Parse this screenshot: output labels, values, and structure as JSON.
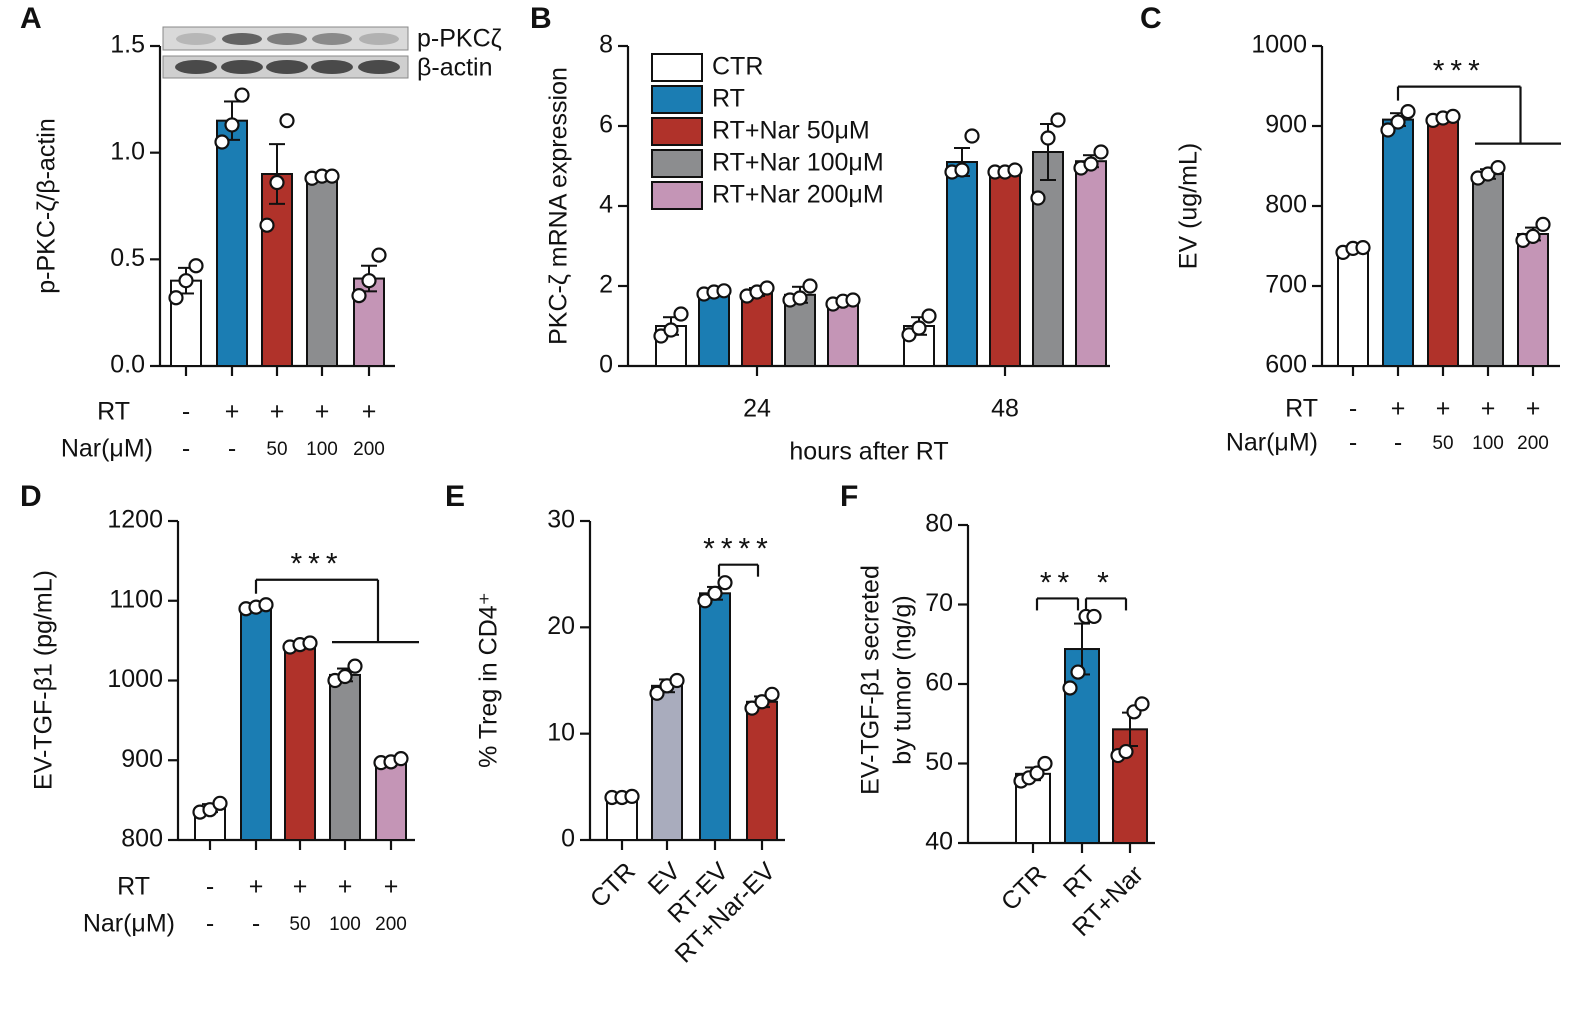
{
  "chart_data": [
    {
      "type": "bar",
      "panel": "A",
      "ylabel": "p-PKC-ζ/β-actin",
      "ylim": [
        0,
        1.5
      ],
      "yticks": [
        {
          "value": 0,
          "label": "0.0"
        },
        0.5,
        {
          "value": 1,
          "label": "1.0"
        },
        1.5
      ],
      "blot_labels": [
        "p-PKCζ",
        "β-actin"
      ],
      "values": [
        0.4,
        1.15,
        0.9,
        0.89,
        0.41
      ],
      "errors": [
        0.06,
        0.09,
        0.14,
        0.01,
        0.06
      ],
      "points": [
        [
          0.32,
          0.4,
          0.47
        ],
        [
          1.05,
          1.13,
          1.27
        ],
        [
          0.66,
          0.86,
          1.15
        ],
        [
          0.88,
          0.89,
          0.89
        ],
        [
          0.33,
          0.4,
          0.52
        ]
      ],
      "colors": [
        "#ffffff",
        "#1b7db3",
        "#b0322a",
        "#8c8d8f",
        "#c495b6"
      ],
      "rows": [
        {
          "name": "RT",
          "values": [
            "-",
            "+",
            "+",
            "+",
            "+"
          ]
        },
        {
          "name": "Nar(μM)",
          "values": [
            "-",
            "-",
            "50",
            "100",
            "200"
          ]
        }
      ]
    },
    {
      "type": "bar",
      "panel": "B",
      "ylabel": "PKC-ζ mRNA expression",
      "xlabel": "hours after RT",
      "ylim": [
        0,
        8
      ],
      "yticks": [
        0,
        2,
        4,
        6,
        8
      ],
      "categories": [
        "24",
        "48"
      ],
      "series": [
        {
          "name": "CTR",
          "color": "#ffffff",
          "values": [
            1.0,
            1.0
          ],
          "errors": [
            0.22,
            0.22
          ],
          "points": [
            [
              0.75,
              0.9,
              1.3
            ],
            [
              0.78,
              0.95,
              1.25
            ]
          ]
        },
        {
          "name": "RT",
          "color": "#1b7db3",
          "values": [
            1.85,
            5.1
          ],
          "errors": [
            0.05,
            0.35
          ],
          "points": [
            [
              1.8,
              1.85,
              1.88
            ],
            [
              4.85,
              4.9,
              5.75
            ]
          ]
        },
        {
          "name": "RT+Nar 50μM",
          "color": "#b0322a",
          "values": [
            1.85,
            4.88
          ],
          "errors": [
            0.1,
            0.07
          ],
          "points": [
            [
              1.75,
              1.85,
              1.95
            ],
            [
              4.85,
              4.85,
              4.9
            ]
          ]
        },
        {
          "name": "RT+Nar 100μM",
          "color": "#8c8d8f",
          "values": [
            1.78,
            5.35
          ],
          "errors": [
            0.2,
            0.7
          ],
          "points": [
            [
              1.65,
              1.7,
              2.0
            ],
            [
              4.2,
              5.7,
              6.15
            ]
          ]
        },
        {
          "name": "RT+Nar 200μM",
          "color": "#c495b6",
          "values": [
            1.62,
            5.12
          ],
          "errors": [
            0.07,
            0.15
          ],
          "points": [
            [
              1.55,
              1.62,
              1.65
            ],
            [
              4.95,
              5.05,
              5.35
            ]
          ]
        }
      ]
    },
    {
      "type": "bar",
      "panel": "C",
      "ylabel": "EV (ug/mL)",
      "ylim": [
        600,
        1000
      ],
      "yticks": [
        600,
        700,
        800,
        900,
        1000
      ],
      "values": [
        745,
        908,
        910,
        840,
        765
      ],
      "errors": [
        3,
        8,
        3,
        6,
        8
      ],
      "points": [
        [
          742,
          747,
          748
        ],
        [
          895,
          905,
          918
        ],
        [
          907,
          910,
          912
        ],
        [
          835,
          840,
          848
        ],
        [
          757,
          762,
          777
        ]
      ],
      "colors": [
        "#ffffff",
        "#1b7db3",
        "#b0322a",
        "#8c8d8f",
        "#c495b6"
      ],
      "rows": [
        {
          "name": "RT",
          "values": [
            "-",
            "+",
            "+",
            "+",
            "+"
          ]
        },
        {
          "name": "Nar(μM)",
          "values": [
            "-",
            "-",
            "50",
            "100",
            "200"
          ]
        }
      ],
      "significance": [
        {
          "label": "***",
          "from": 1,
          "to": [
            3,
            4
          ]
        }
      ]
    },
    {
      "type": "bar",
      "panel": "D",
      "ylabel": "EV-TGF-β1 (pg/mL)",
      "ylim": [
        800,
        1200
      ],
      "yticks": [
        800,
        900,
        1000,
        1100,
        1200
      ],
      "values": [
        840,
        1092,
        1045,
        1007,
        900
      ],
      "errors": [
        5,
        3,
        3,
        8,
        3
      ],
      "points": [
        [
          835,
          838,
          846
        ],
        [
          1090,
          1092,
          1095
        ],
        [
          1042,
          1045,
          1047
        ],
        [
          1000,
          1005,
          1018
        ],
        [
          897,
          898,
          902
        ]
      ],
      "colors": [
        "#ffffff",
        "#1b7db3",
        "#b0322a",
        "#8c8d8f",
        "#c495b6"
      ],
      "rows": [
        {
          "name": "RT",
          "values": [
            "-",
            "+",
            "+",
            "+",
            "+"
          ]
        },
        {
          "name": "Nar(μM)",
          "values": [
            "-",
            "-",
            "50",
            "100",
            "200"
          ]
        }
      ],
      "significance": [
        {
          "label": "***",
          "from": 1,
          "to": [
            3,
            4
          ]
        }
      ]
    },
    {
      "type": "bar",
      "panel": "E",
      "ylabel": "% Treg in CD4⁺",
      "ylim": [
        0,
        30
      ],
      "yticks": [
        0,
        10,
        20,
        30
      ],
      "categories": [
        "CTR",
        "EV",
        "RT-EV",
        "RT+Nar-EV"
      ],
      "values": [
        4.0,
        14.5,
        23.2,
        13.0
      ],
      "errors": [
        0.1,
        0.6,
        0.6,
        0.5
      ],
      "points": [
        [
          4.0,
          4.0,
          4.1
        ],
        [
          13.8,
          14.5,
          15.0
        ],
        [
          22.5,
          23.2,
          24.2
        ],
        [
          12.4,
          13.0,
          13.7
        ]
      ],
      "colors": [
        "#ffffff",
        "#a9acbd",
        "#1b7db3",
        "#b0322a"
      ],
      "significance": [
        {
          "label": "****",
          "from": 2,
          "to": 3
        }
      ]
    },
    {
      "type": "bar",
      "panel": "F",
      "ylabel": [
        "EV-TGF-β1 secreted",
        "by tumor (ng/g)"
      ],
      "ylim": [
        40,
        80
      ],
      "yticks": [
        40,
        50,
        60,
        70,
        80
      ],
      "categories": [
        "CTR",
        "RT",
        "RT+Nar"
      ],
      "values": [
        48.7,
        64.4,
        54.3
      ],
      "errors": [
        0.8,
        3.2,
        2.1
      ],
      "points": [
        [
          47.8,
          48.2,
          48.8,
          50.0
        ],
        [
          59.5,
          61.5,
          68.5,
          68.5
        ],
        [
          51.0,
          51.5,
          56.5,
          57.5
        ]
      ],
      "colors": [
        "#ffffff",
        "#1b7db3",
        "#b0322a"
      ],
      "significance": [
        {
          "label": "**",
          "from": 0,
          "to": 1
        },
        {
          "label": "*",
          "from": 1,
          "to": 2
        }
      ]
    }
  ]
}
